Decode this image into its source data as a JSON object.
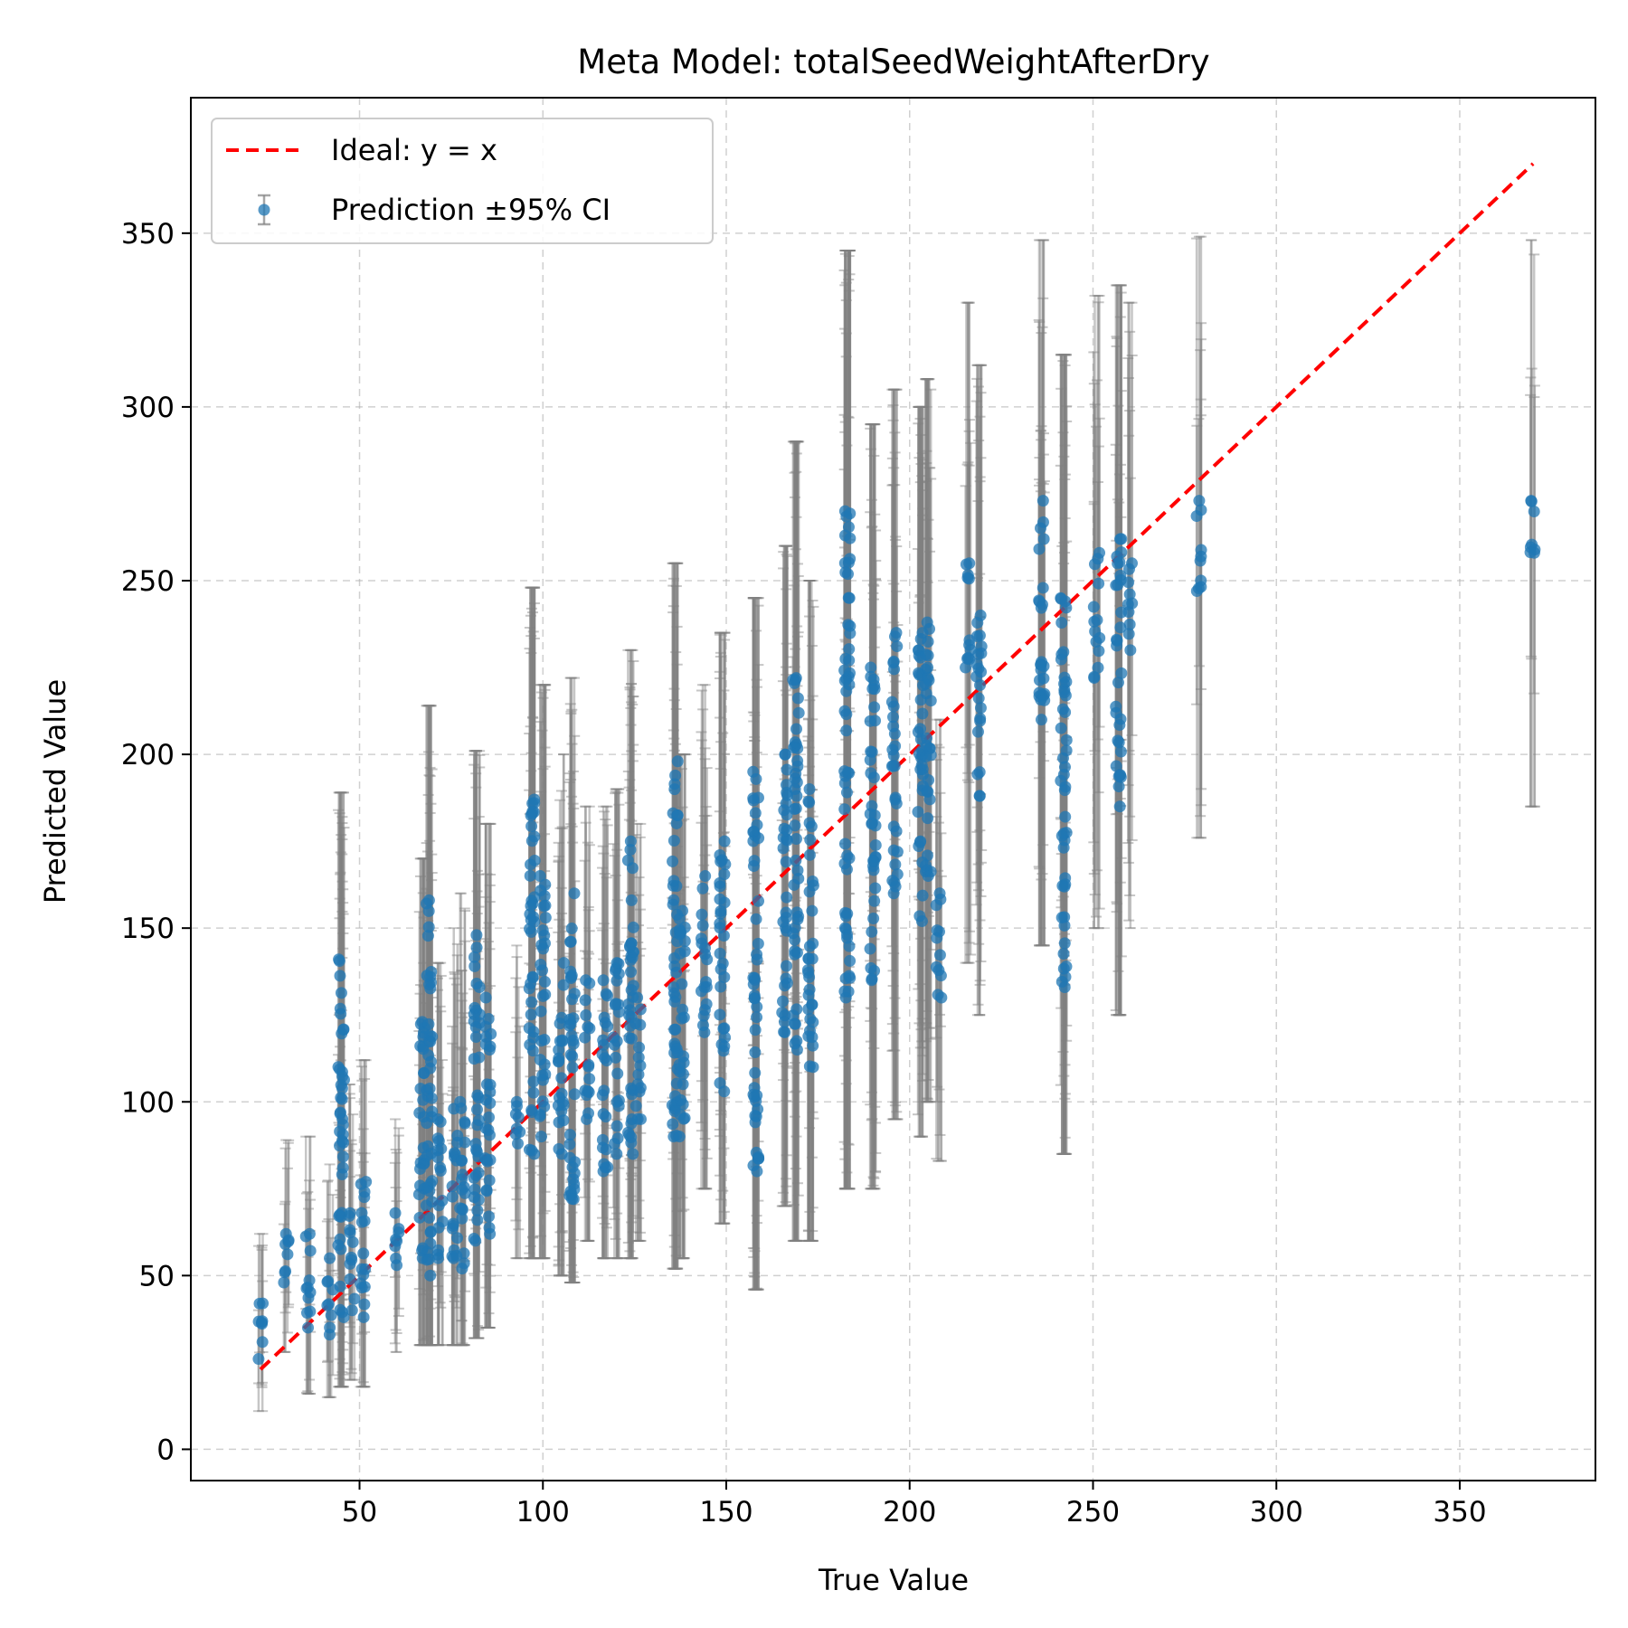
{
  "chart_data": {
    "type": "scatter",
    "title": "Meta Model: totalSeedWeightAfterDry",
    "xlabel": "True Value",
    "ylabel": "Predicted Value",
    "xlim": [
      4,
      387
    ],
    "ylim": [
      -9,
      389
    ],
    "x_ticks": [
      50,
      100,
      150,
      200,
      250,
      300,
      350
    ],
    "y_ticks": [
      0,
      50,
      100,
      150,
      200,
      250,
      300,
      350
    ],
    "grid": true,
    "legend_position": "upper-left",
    "colors": {
      "points": "#1f77b4",
      "errorbars": "#808080",
      "ideal": "#ff0000"
    },
    "legend": [
      {
        "label": "Ideal: y = x",
        "kind": "dashed-line"
      },
      {
        "label": "Prediction ±95% CI",
        "kind": "errorbar-point"
      }
    ],
    "ideal_line": {
      "x": [
        23,
        370
      ],
      "y": [
        23,
        370
      ]
    },
    "groups": [
      {
        "x": 23,
        "y_min": 26,
        "y_max": 42,
        "ci_low": 11,
        "ci_high": 62
      },
      {
        "x": 30,
        "y_min": 48,
        "y_max": 62,
        "ci_low": 28,
        "ci_high": 89
      },
      {
        "x": 36,
        "y_min": 35,
        "y_max": 62,
        "ci_low": 16,
        "ci_high": 90
      },
      {
        "x": 42,
        "y_min": 33,
        "y_max": 55,
        "ci_low": 15,
        "ci_high": 82
      },
      {
        "x": 45,
        "y_min": 38,
        "y_max": 141,
        "ci_low": 18,
        "ci_high": 189
      },
      {
        "x": 48,
        "y_min": 40,
        "y_max": 68,
        "ci_low": 20,
        "ci_high": 105
      },
      {
        "x": 51,
        "y_min": 38,
        "y_max": 77,
        "ci_low": 18,
        "ci_high": 112
      },
      {
        "x": 60,
        "y_min": 53,
        "y_max": 68,
        "ci_low": 28,
        "ci_high": 95
      },
      {
        "x": 67,
        "y_min": 55,
        "y_max": 123,
        "ci_low": 30,
        "ci_high": 170
      },
      {
        "x": 69,
        "y_min": 50,
        "y_max": 158,
        "ci_low": 30,
        "ci_high": 214
      },
      {
        "x": 72,
        "y_min": 55,
        "y_max": 95,
        "ci_low": 30,
        "ci_high": 140
      },
      {
        "x": 76,
        "y_min": 55,
        "y_max": 98,
        "ci_low": 30,
        "ci_high": 150
      },
      {
        "x": 78,
        "y_min": 52,
        "y_max": 100,
        "ci_low": 30,
        "ci_high": 160
      },
      {
        "x": 82,
        "y_min": 60,
        "y_max": 148,
        "ci_low": 32,
        "ci_high": 201
      },
      {
        "x": 85,
        "y_min": 62,
        "y_max": 130,
        "ci_low": 35,
        "ci_high": 180
      },
      {
        "x": 93,
        "y_min": 88,
        "y_max": 100,
        "ci_low": 55,
        "ci_high": 145
      },
      {
        "x": 97,
        "y_min": 85,
        "y_max": 187,
        "ci_low": 55,
        "ci_high": 248
      },
      {
        "x": 100,
        "y_min": 90,
        "y_max": 165,
        "ci_low": 55,
        "ci_high": 220
      },
      {
        "x": 105,
        "y_min": 85,
        "y_max": 140,
        "ci_low": 50,
        "ci_high": 200
      },
      {
        "x": 108,
        "y_min": 72,
        "y_max": 160,
        "ci_low": 48,
        "ci_high": 222
      },
      {
        "x": 112,
        "y_min": 95,
        "y_max": 135,
        "ci_low": 60,
        "ci_high": 185
      },
      {
        "x": 117,
        "y_min": 80,
        "y_max": 135,
        "ci_low": 55,
        "ci_high": 185
      },
      {
        "x": 120,
        "y_min": 85,
        "y_max": 140,
        "ci_low": 55,
        "ci_high": 190
      },
      {
        "x": 124,
        "y_min": 85,
        "y_max": 175,
        "ci_low": 55,
        "ci_high": 230
      },
      {
        "x": 126,
        "y_min": 95,
        "y_max": 130,
        "ci_low": 60,
        "ci_high": 180
      },
      {
        "x": 136,
        "y_min": 90,
        "y_max": 198,
        "ci_low": 52,
        "ci_high": 255
      },
      {
        "x": 138,
        "y_min": 90,
        "y_max": 155,
        "ci_low": 55,
        "ci_high": 200
      },
      {
        "x": 144,
        "y_min": 120,
        "y_max": 165,
        "ci_low": 75,
        "ci_high": 220
      },
      {
        "x": 149,
        "y_min": 103,
        "y_max": 175,
        "ci_low": 65,
        "ci_high": 235
      },
      {
        "x": 158,
        "y_min": 80,
        "y_max": 195,
        "ci_low": 46,
        "ci_high": 245
      },
      {
        "x": 166,
        "y_min": 120,
        "y_max": 200,
        "ci_low": 70,
        "ci_high": 260
      },
      {
        "x": 169,
        "y_min": 115,
        "y_max": 222,
        "ci_low": 60,
        "ci_high": 290
      },
      {
        "x": 173,
        "y_min": 110,
        "y_max": 190,
        "ci_low": 60,
        "ci_high": 250
      },
      {
        "x": 183,
        "y_min": 130,
        "y_max": 270,
        "ci_low": 75,
        "ci_high": 345
      },
      {
        "x": 190,
        "y_min": 135,
        "y_max": 225,
        "ci_low": 75,
        "ci_high": 295
      },
      {
        "x": 196,
        "y_min": 160,
        "y_max": 235,
        "ci_low": 95,
        "ci_high": 305
      },
      {
        "x": 203,
        "y_min": 152,
        "y_max": 235,
        "ci_low": 90,
        "ci_high": 300
      },
      {
        "x": 205,
        "y_min": 165,
        "y_max": 238,
        "ci_low": 100,
        "ci_high": 308
      },
      {
        "x": 208,
        "y_min": 130,
        "y_max": 160,
        "ci_low": 83,
        "ci_high": 210
      },
      {
        "x": 216,
        "y_min": 225,
        "y_max": 255,
        "ci_low": 140,
        "ci_high": 330
      },
      {
        "x": 219,
        "y_min": 188,
        "y_max": 240,
        "ci_low": 125,
        "ci_high": 312
      },
      {
        "x": 236,
        "y_min": 210,
        "y_max": 273,
        "ci_low": 145,
        "ci_high": 348
      },
      {
        "x": 242,
        "y_min": 133,
        "y_max": 245,
        "ci_low": 85,
        "ci_high": 315
      },
      {
        "x": 251,
        "y_min": 222,
        "y_max": 258,
        "ci_low": 150,
        "ci_high": 332
      },
      {
        "x": 257,
        "y_min": 185,
        "y_max": 262,
        "ci_low": 125,
        "ci_high": 335
      },
      {
        "x": 260,
        "y_min": 230,
        "y_max": 255,
        "ci_low": 150,
        "ci_high": 330
      },
      {
        "x": 279,
        "y_min": 247,
        "y_max": 273,
        "ci_low": 176,
        "ci_high": 349
      },
      {
        "x": 370,
        "y_min": 258,
        "y_max": 273,
        "ci_low": 185,
        "ci_high": 348
      }
    ]
  }
}
